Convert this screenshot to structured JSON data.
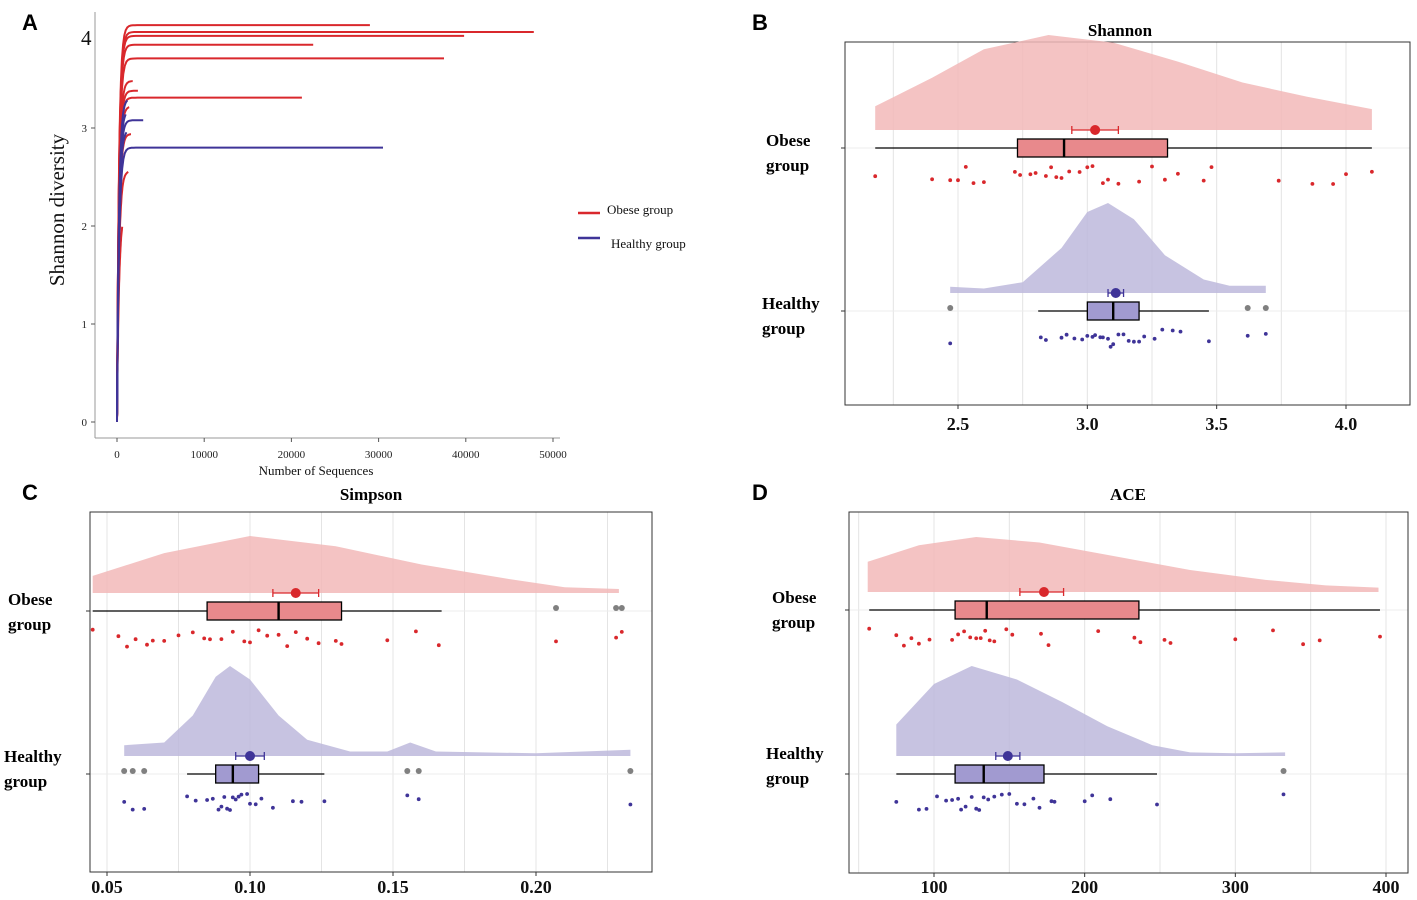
{
  "figure": {
    "panel_labels": [
      "A",
      "B",
      "C",
      "D"
    ],
    "colors": {
      "obese": "#d9282c",
      "healthy": "#3f3498",
      "obese_fill": "#f2b8b8",
      "healthy_fill": "#bdb8dc",
      "obese_box": "#e8898c",
      "healthy_box": "#a19ad0",
      "outlier": "#808080",
      "grid": "#e4e4e4"
    }
  },
  "chart_data": [
    {
      "id": "A",
      "type": "line",
      "title": "",
      "xlabel": "Number of Sequences",
      "ylabel": "Shannon diversity",
      "xlim": [
        0,
        50000
      ],
      "ylim": [
        0,
        4.1
      ],
      "xticks": [
        "0",
        "10000",
        "20000",
        "30000",
        "40000",
        "50000"
      ],
      "yticks": [
        "0",
        "1",
        "2",
        "3",
        "4"
      ],
      "top_partial_label": "4",
      "legend": {
        "position": "right",
        "entries": [
          "Obese group",
          "Healthy group"
        ]
      },
      "series": [
        {
          "group": "Obese group",
          "end_x": 29000,
          "plateau": 4.05
        },
        {
          "group": "Obese group",
          "end_x": 47800,
          "plateau": 3.98
        },
        {
          "group": "Obese group",
          "end_x": 39800,
          "plateau": 3.94
        },
        {
          "group": "Obese group",
          "end_x": 22500,
          "plateau": 3.85
        },
        {
          "group": "Obese group",
          "end_x": 37500,
          "plateau": 3.71
        },
        {
          "group": "Obese group",
          "end_x": 21200,
          "plateau": 3.31
        },
        {
          "group": "Obese group",
          "end_x": 1800,
          "plateau": 3.48
        },
        {
          "group": "Obese group",
          "end_x": 2400,
          "plateau": 3.38
        },
        {
          "group": "Obese group",
          "end_x": 1400,
          "plateau": 3.22
        },
        {
          "group": "Obese group",
          "end_x": 1600,
          "plateau": 2.94
        },
        {
          "group": "Obese group",
          "end_x": 1300,
          "plateau": 2.56
        },
        {
          "group": "Obese group",
          "end_x": 600,
          "plateau": 2.15
        },
        {
          "group": "Healthy group",
          "end_x": 30500,
          "plateau": 2.8
        },
        {
          "group": "Healthy group",
          "end_x": 3000,
          "plateau": 3.08
        },
        {
          "group": "Healthy group",
          "end_x": 1200,
          "plateau": 3.3
        },
        {
          "group": "Healthy group",
          "end_x": 1000,
          "plateau": 3.18
        },
        {
          "group": "Healthy group",
          "end_x": 1100,
          "plateau": 2.98
        }
      ]
    },
    {
      "id": "B",
      "type": "raincloud",
      "title": "Shannon",
      "xlim": [
        2.1,
        4.2
      ],
      "xticks": [
        2.5,
        3.0,
        3.5,
        4.0
      ],
      "xtick_labels": [
        "2.5",
        "3.0",
        "3.5",
        "4.0"
      ],
      "groups": [
        {
          "label_line1": "Obese",
          "label_line2": "group",
          "density_range": [
            2.18,
            4.1
          ],
          "density_peak": 2.85,
          "density_profile": [
            [
              2.18,
              0.25
            ],
            [
              2.4,
              0.55
            ],
            [
              2.6,
              0.85
            ],
            [
              2.85,
              1.0
            ],
            [
              3.1,
              0.92
            ],
            [
              3.35,
              0.72
            ],
            [
              3.6,
              0.5
            ],
            [
              3.85,
              0.35
            ],
            [
              4.1,
              0.22
            ]
          ],
          "mean": 3.03,
          "ci": [
            2.94,
            3.12
          ],
          "box": {
            "min": 2.18,
            "q1": 2.73,
            "median": 2.91,
            "q3": 3.31,
            "max": 4.1
          },
          "outliers": [],
          "points": [
            2.18,
            2.4,
            2.47,
            2.5,
            2.53,
            2.56,
            2.6,
            2.72,
            2.74,
            2.78,
            2.8,
            2.84,
            2.86,
            2.88,
            2.9,
            2.93,
            2.97,
            3.0,
            3.02,
            3.06,
            3.08,
            3.12,
            3.2,
            3.25,
            3.3,
            3.35,
            3.45,
            3.48,
            3.74,
            3.87,
            3.95,
            4.0,
            4.1
          ]
        },
        {
          "label_line1": "Healthy",
          "label_line2": "group",
          "density_range": [
            2.47,
            3.69
          ],
          "density_peak": 3.08,
          "density_profile": [
            [
              2.47,
              0.07
            ],
            [
              2.6,
              0.05
            ],
            [
              2.75,
              0.12
            ],
            [
              2.9,
              0.5
            ],
            [
              3.0,
              0.9
            ],
            [
              3.08,
              1.0
            ],
            [
              3.18,
              0.82
            ],
            [
              3.3,
              0.42
            ],
            [
              3.45,
              0.15
            ],
            [
              3.55,
              0.08
            ],
            [
              3.69,
              0.08
            ]
          ],
          "mean": 3.11,
          "ci": [
            3.08,
            3.14
          ],
          "box": {
            "min": 2.81,
            "q1": 3.0,
            "median": 3.1,
            "q3": 3.2,
            "max": 3.47
          },
          "outliers": [
            2.47,
            3.62,
            3.69
          ],
          "points": [
            2.47,
            2.82,
            2.84,
            2.9,
            2.92,
            2.95,
            2.98,
            3.0,
            3.02,
            3.03,
            3.05,
            3.06,
            3.08,
            3.09,
            3.1,
            3.12,
            3.14,
            3.16,
            3.18,
            3.2,
            3.22,
            3.26,
            3.29,
            3.33,
            3.36,
            3.47,
            3.62,
            3.69
          ]
        }
      ]
    },
    {
      "id": "C",
      "type": "raincloud",
      "title": "Simpson",
      "xlim": [
        0.043,
        0.238
      ],
      "xticks": [
        0.05,
        0.1,
        0.15,
        0.2
      ],
      "xtick_labels": [
        "0.05",
        "0.10",
        "0.15",
        "0.20"
      ],
      "groups": [
        {
          "label_line1": "Obese",
          "label_line2": "group",
          "density_range": [
            0.045,
            0.229
          ],
          "density_peak": 0.1,
          "density_profile": [
            [
              0.045,
              0.3
            ],
            [
              0.07,
              0.7
            ],
            [
              0.1,
              1.0
            ],
            [
              0.13,
              0.82
            ],
            [
              0.16,
              0.5
            ],
            [
              0.19,
              0.25
            ],
            [
              0.21,
              0.1
            ],
            [
              0.229,
              0.07
            ]
          ],
          "mean": 0.116,
          "ci": [
            0.108,
            0.124
          ],
          "box": {
            "min": 0.045,
            "q1": 0.085,
            "median": 0.11,
            "q3": 0.132,
            "max": 0.167
          },
          "outliers": [
            0.207,
            0.228,
            0.23
          ],
          "points": [
            0.045,
            0.054,
            0.057,
            0.06,
            0.064,
            0.066,
            0.07,
            0.075,
            0.08,
            0.084,
            0.086,
            0.09,
            0.094,
            0.098,
            0.1,
            0.103,
            0.106,
            0.11,
            0.113,
            0.116,
            0.12,
            0.124,
            0.13,
            0.132,
            0.148,
            0.158,
            0.166,
            0.207,
            0.228,
            0.23
          ]
        },
        {
          "label_line1": "Healthy",
          "label_line2": "group",
          "density_range": [
            0.056,
            0.233
          ],
          "density_peak": 0.093,
          "density_profile": [
            [
              0.056,
              0.12
            ],
            [
              0.07,
              0.15
            ],
            [
              0.08,
              0.45
            ],
            [
              0.088,
              0.88
            ],
            [
              0.093,
              1.0
            ],
            [
              0.1,
              0.85
            ],
            [
              0.11,
              0.45
            ],
            [
              0.12,
              0.18
            ],
            [
              0.135,
              0.05
            ],
            [
              0.148,
              0.05
            ],
            [
              0.156,
              0.15
            ],
            [
              0.165,
              0.05
            ],
            [
              0.2,
              0.03
            ],
            [
              0.233,
              0.07
            ]
          ],
          "mean": 0.1,
          "ci": [
            0.095,
            0.105
          ],
          "box": {
            "min": 0.078,
            "q1": 0.088,
            "median": 0.094,
            "q3": 0.103,
            "max": 0.126
          },
          "outliers": [
            0.056,
            0.059,
            0.063,
            0.155,
            0.159,
            0.233
          ],
          "points": [
            0.056,
            0.059,
            0.063,
            0.078,
            0.081,
            0.085,
            0.087,
            0.089,
            0.09,
            0.091,
            0.092,
            0.093,
            0.094,
            0.095,
            0.096,
            0.097,
            0.099,
            0.1,
            0.102,
            0.104,
            0.108,
            0.115,
            0.118,
            0.126,
            0.155,
            0.159,
            0.233
          ]
        }
      ]
    },
    {
      "id": "D",
      "type": "raincloud",
      "title": "ACE",
      "xlim": [
        45,
        405
      ],
      "xticks": [
        100,
        200,
        300,
        400
      ],
      "xtick_labels": [
        "100",
        "200",
        "300",
        "400"
      ],
      "groups": [
        {
          "label_line1": "Obese",
          "label_line2": "group",
          "density_range": [
            56,
            395
          ],
          "density_peak": 128,
          "density_profile": [
            [
              56,
              0.55
            ],
            [
              90,
              0.85
            ],
            [
              128,
              1.0
            ],
            [
              170,
              0.9
            ],
            [
              220,
              0.65
            ],
            [
              270,
              0.4
            ],
            [
              320,
              0.22
            ],
            [
              360,
              0.12
            ],
            [
              395,
              0.08
            ]
          ],
          "mean": 173,
          "ci": [
            157,
            186
          ],
          "box": {
            "min": 57,
            "q1": 114,
            "median": 135,
            "q3": 236,
            "max": 396
          },
          "outliers": [],
          "points": [
            57,
            75,
            80,
            85,
            90,
            97,
            112,
            116,
            120,
            124,
            128,
            131,
            134,
            137,
            140,
            148,
            152,
            171,
            176,
            209,
            233,
            237,
            253,
            257,
            300,
            325,
            345,
            356,
            396
          ]
        },
        {
          "label_line1": "Healthy",
          "label_line2": "group",
          "density_range": [
            75,
            333
          ],
          "density_peak": 125,
          "density_profile": [
            [
              75,
              0.35
            ],
            [
              100,
              0.8
            ],
            [
              125,
              1.0
            ],
            [
              155,
              0.85
            ],
            [
              185,
              0.6
            ],
            [
              215,
              0.33
            ],
            [
              245,
              0.12
            ],
            [
              270,
              0.04
            ],
            [
              300,
              0.03
            ],
            [
              333,
              0.04
            ]
          ],
          "mean": 149,
          "ci": [
            141,
            157
          ],
          "box": {
            "min": 75,
            "q1": 114,
            "median": 133,
            "q3": 173,
            "max": 248
          },
          "outliers": [
            332
          ],
          "points": [
            75,
            90,
            95,
            102,
            108,
            112,
            116,
            118,
            121,
            125,
            128,
            130,
            133,
            136,
            140,
            145,
            150,
            155,
            160,
            166,
            170,
            178,
            180,
            200,
            205,
            217,
            248,
            332
          ]
        }
      ]
    }
  ]
}
